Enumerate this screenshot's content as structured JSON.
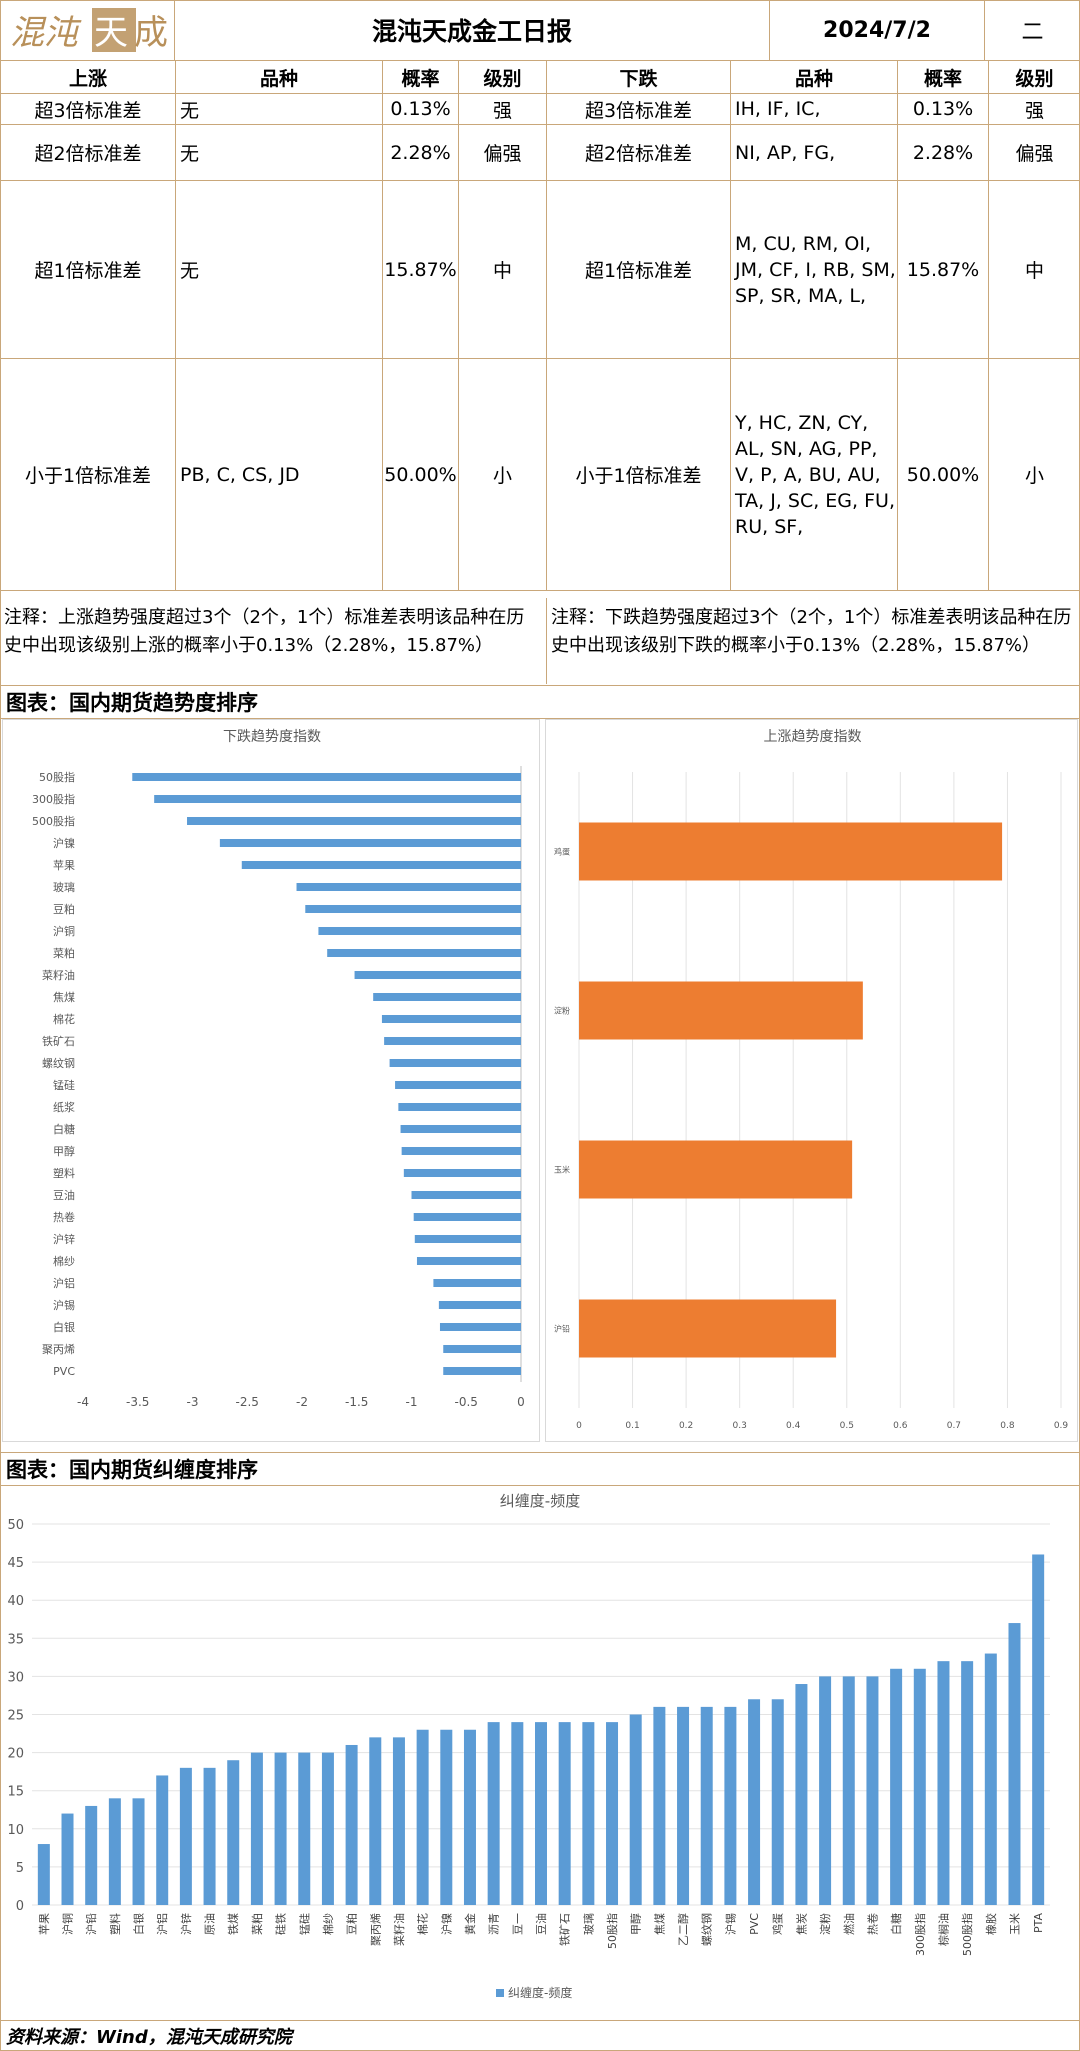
{
  "header": {
    "logo_text": "混沌天成",
    "title": "混沌天成金工日报",
    "date": "2024/7/2",
    "weekday": "二"
  },
  "table": {
    "up_headers": [
      "上涨",
      "品种",
      "概率",
      "级别"
    ],
    "down_headers": [
      "下跌",
      "品种",
      "概率",
      "级别"
    ],
    "rows": [
      {
        "up_level": "超3倍标准差",
        "up_items": "无",
        "up_prob": "0.13%",
        "up_grade": "强",
        "down_level": "超3倍标准差",
        "down_items": "IH, IF, IC,",
        "down_prob": "0.13%",
        "down_grade": "强"
      },
      {
        "up_level": "超2倍标准差",
        "up_items": "无",
        "up_prob": "2.28%",
        "up_grade": "偏强",
        "down_level": "超2倍标准差",
        "down_items": "NI, AP, FG,",
        "down_prob": "2.28%",
        "down_grade": "偏强"
      },
      {
        "up_level": "超1倍标准差",
        "up_items": "无",
        "up_prob": "15.87%",
        "up_grade": "中",
        "down_level": "超1倍标准差",
        "down_items": "M, CU, RM, OI, JM, CF, I, RB, SM, SP, SR, MA, L,",
        "down_prob": "15.87%",
        "down_grade": "中"
      },
      {
        "up_level": "小于1倍标准差",
        "up_items": "PB, C, CS, JD",
        "up_prob": "50.00%",
        "up_grade": "小",
        "down_level": "小于1倍标准差",
        "down_items": "Y, HC, ZN, CY, AL, SN, AG, PP, V, P, A, BU, AU, TA, J, SC, EG, FU, RU, SF,",
        "down_prob": "50.00%",
        "down_grade": "小"
      }
    ],
    "note_up": "注释：上涨趋势强度超过3个（2个，1个）标准差表明该品种在历史中出现该级别上涨的概率小于0.13%（2.28%，15.87%）",
    "note_down": "注释：下跌趋势强度超过3个（2个，1个）标准差表明该品种在历史中出现该级别下跌的概率小于0.13%（2.28%，15.87%）"
  },
  "sections": {
    "trend": "图表：国内期货趋势度排序",
    "entangle": "图表：国内期货纠缠度排序"
  },
  "colors": {
    "blue": "#5b9bd5",
    "orange": "#ed7d31",
    "border": "#c9a77a",
    "logo_gold": "#b8905a"
  },
  "chart_data": [
    {
      "type": "bar",
      "orientation": "horizontal",
      "title": "下跌趋势度指数",
      "categories": [
        "50股指",
        "300股指",
        "500股指",
        "沪镍",
        "苹果",
        "玻璃",
        "豆粕",
        "沪铜",
        "菜粕",
        "菜籽油",
        "焦煤",
        "棉花",
        "铁矿石",
        "螺纹钢",
        "锰硅",
        "纸浆",
        "白糖",
        "甲醇",
        "塑料",
        "豆油",
        "热卷",
        "沪锌",
        "棉纱",
        "沪铝",
        "沪锡",
        "白银",
        "聚丙烯",
        "PVC"
      ],
      "values": [
        -3.55,
        -3.35,
        -3.05,
        -2.75,
        -2.55,
        -2.05,
        -1.97,
        -1.85,
        -1.77,
        -1.52,
        -1.35,
        -1.27,
        -1.25,
        -1.2,
        -1.15,
        -1.12,
        -1.1,
        -1.09,
        -1.07,
        -1.0,
        -0.98,
        -0.97,
        -0.95,
        -0.8,
        -0.75,
        -0.74,
        -0.71,
        -0.71
      ],
      "xlim": [
        -4,
        0
      ],
      "xticks": [
        -4,
        -3.5,
        -3,
        -2.5,
        -2,
        -1.5,
        -1,
        -0.5,
        0
      ],
      "color": "#5b9bd5"
    },
    {
      "type": "bar",
      "orientation": "horizontal",
      "title": "上涨趋势度指数",
      "categories": [
        "鸡蛋",
        "淀粉",
        "玉米",
        "沪铅"
      ],
      "values": [
        0.79,
        0.53,
        0.51,
        0.48
      ],
      "xlim": [
        0,
        0.9
      ],
      "xticks": [
        0,
        0.1,
        0.2,
        0.3,
        0.4,
        0.5,
        0.6,
        0.7,
        0.8,
        0.9
      ],
      "color": "#ed7d31"
    },
    {
      "type": "bar",
      "title": "纠缠度-频度",
      "categories": [
        "苹果",
        "沪铜",
        "沪铅",
        "塑料",
        "白银",
        "沪铝",
        "沪锌",
        "原油",
        "铁煤",
        "菜粕",
        "硅铁",
        "锰硅",
        "棉纱",
        "豆粕",
        "聚丙烯",
        "菜籽油",
        "棉花",
        "沪镍",
        "黄金",
        "沥青",
        "豆一",
        "豆油",
        "铁矿石",
        "玻璃",
        "50股指",
        "甲醇",
        "焦煤",
        "乙二醇",
        "螺纹钢",
        "沪锡",
        "PVC",
        "鸡蛋",
        "焦炭",
        "淀粉",
        "燃油",
        "热卷",
        "白糖",
        "300股指",
        "棕榈油",
        "500股指",
        "橡胶",
        "玉米",
        "PTA"
      ],
      "series": [
        {
          "name": "纠缠度-频度",
          "values": [
            8,
            12,
            13,
            14,
            14,
            17,
            18,
            18,
            19,
            20,
            20,
            20,
            20,
            21,
            22,
            22,
            23,
            23,
            23,
            24,
            24,
            24,
            24,
            24,
            24,
            25,
            26,
            26,
            26,
            26,
            27,
            27,
            29,
            30,
            30,
            30,
            31,
            31,
            32,
            32,
            33,
            37,
            46
          ]
        }
      ],
      "ylim": [
        0,
        50
      ],
      "yticks": [
        0,
        5,
        10,
        15,
        20,
        25,
        30,
        35,
        40,
        45,
        50
      ],
      "legend": "bottom",
      "color": "#5b9bd5"
    }
  ],
  "footer": "资料来源：Wind，混沌天成研究院"
}
